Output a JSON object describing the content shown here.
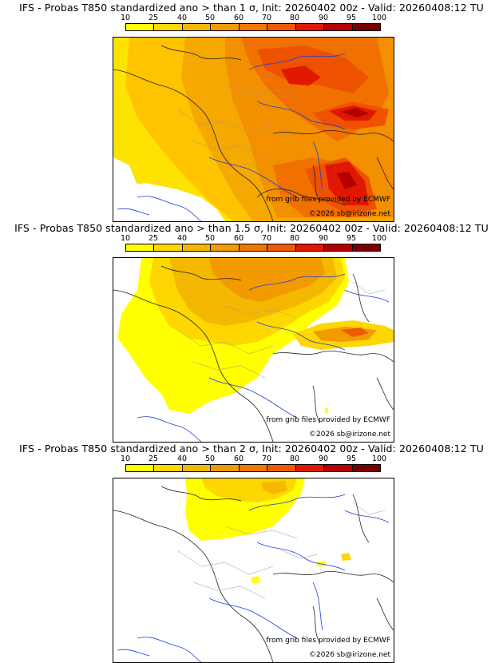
{
  "legend": {
    "ticks": [
      "10",
      "25",
      "40",
      "50",
      "60",
      "70",
      "80",
      "90",
      "95",
      "100"
    ],
    "colors": [
      "#ffff00",
      "#ffd700",
      "#f5b800",
      "#f29a00",
      "#f07800",
      "#ee5a00",
      "#e01800",
      "#b40000",
      "#7a0000"
    ]
  },
  "panels": [
    {
      "title": "IFS - Probas T850  standardized ano > than 1 σ, Init: 20260402 00z - Valid: 20260408:12 TU",
      "credit_source": "from grib files provided by ECMWF",
      "credit_site": "©2026 sb@irizone.net"
    },
    {
      "title": "IFS - Probas T850  standardized ano > than 1.5 σ, Init: 20260402 00z - Valid: 20260408:12 TU",
      "credit_source": "from grib files provided by ECMWF",
      "credit_site": "©2026 sb@irizone.net"
    },
    {
      "title": "IFS - Probas T850  standardized ano > than 2 σ, Init: 20260402 00z - Valid: 20260408:12 TU",
      "credit_source": "from grib files provided by ECMWF",
      "credit_site": "©2026 sb@irizone.net"
    }
  ]
}
